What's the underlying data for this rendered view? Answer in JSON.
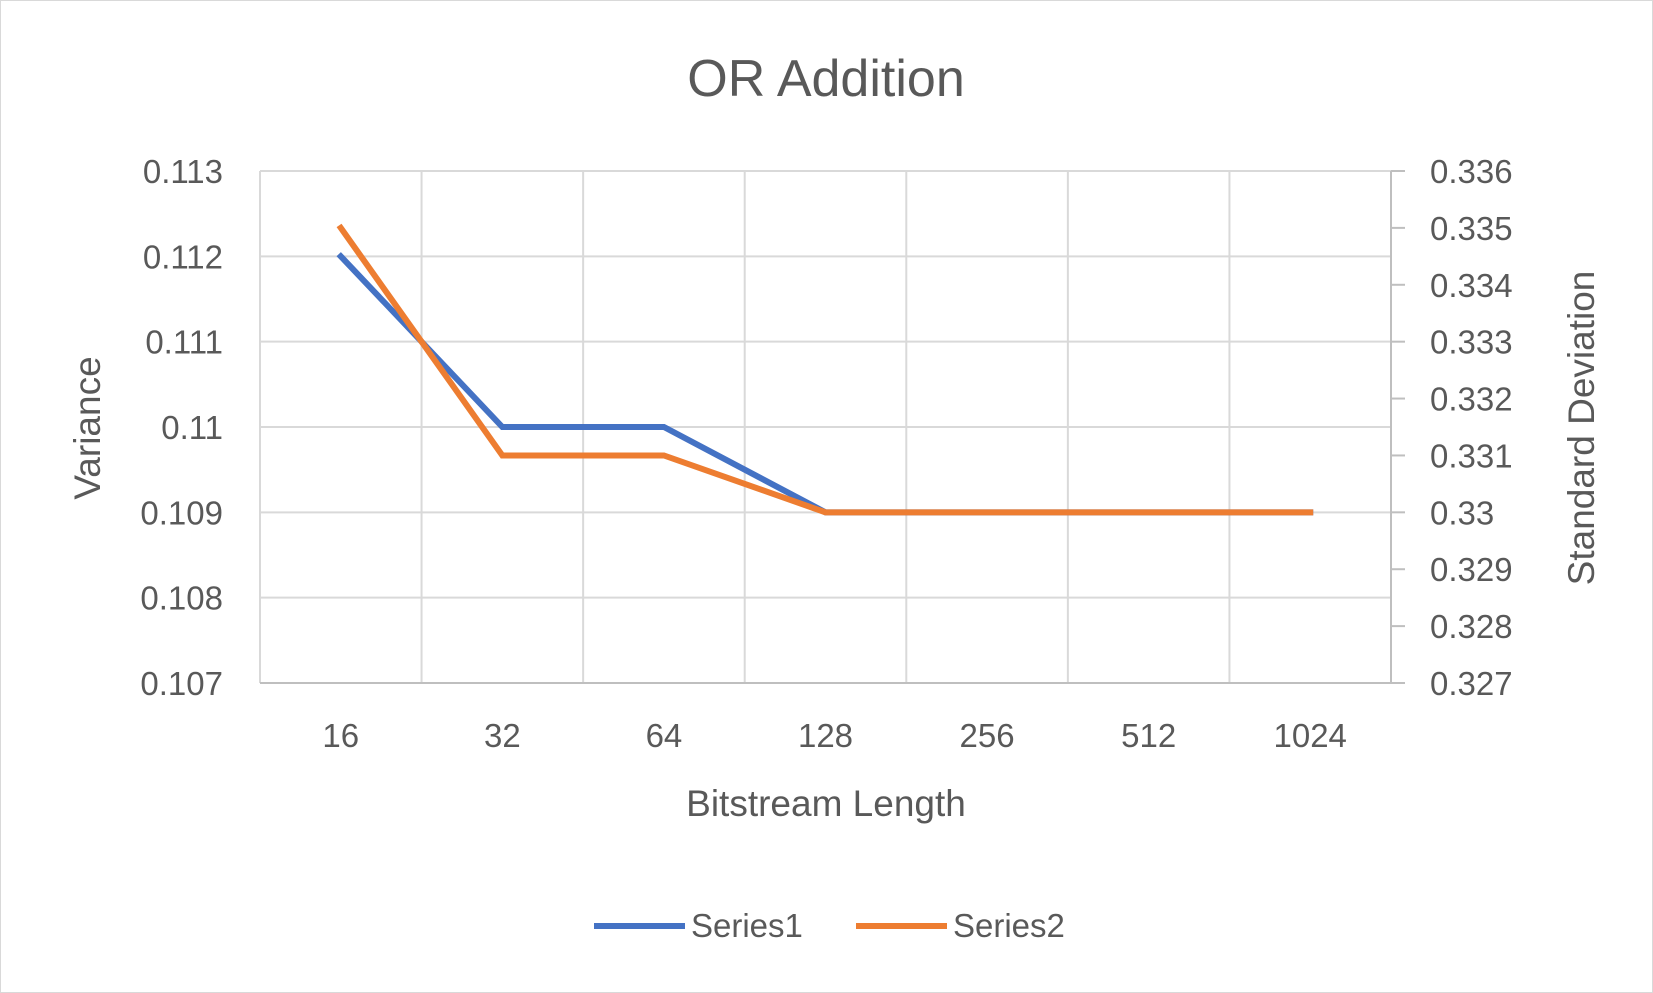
{
  "chart_data": {
    "type": "line",
    "title": "OR Addition",
    "xlabel": "Bitstream Length",
    "ylabel": "Variance",
    "y2label": "Standard Deviation",
    "categories": [
      "16",
      "32",
      "64",
      "128",
      "256",
      "512",
      "1024"
    ],
    "ylim": [
      0.107,
      0.113
    ],
    "y_ticks": [
      "0.107",
      "0.108",
      "0.109",
      "0.11",
      "0.111",
      "0.112",
      "0.113"
    ],
    "y2lim": [
      0.327,
      0.336
    ],
    "y2_ticks": [
      "0.327",
      "0.328",
      "0.329",
      "0.33",
      "0.331",
      "0.332",
      "0.333",
      "0.334",
      "0.335",
      "0.336"
    ],
    "grid": true,
    "legend_position": "bottom",
    "series": [
      {
        "name": "Series1",
        "axis": "primary",
        "color": "#4472c4",
        "values": [
          0.112,
          0.11,
          0.11,
          0.109,
          0.109,
          0.109,
          0.109
        ]
      },
      {
        "name": "Series2",
        "axis": "secondary",
        "color": "#ed7d31",
        "values": [
          0.335,
          0.331,
          0.331,
          0.33,
          0.33,
          0.33,
          0.33
        ]
      }
    ]
  }
}
